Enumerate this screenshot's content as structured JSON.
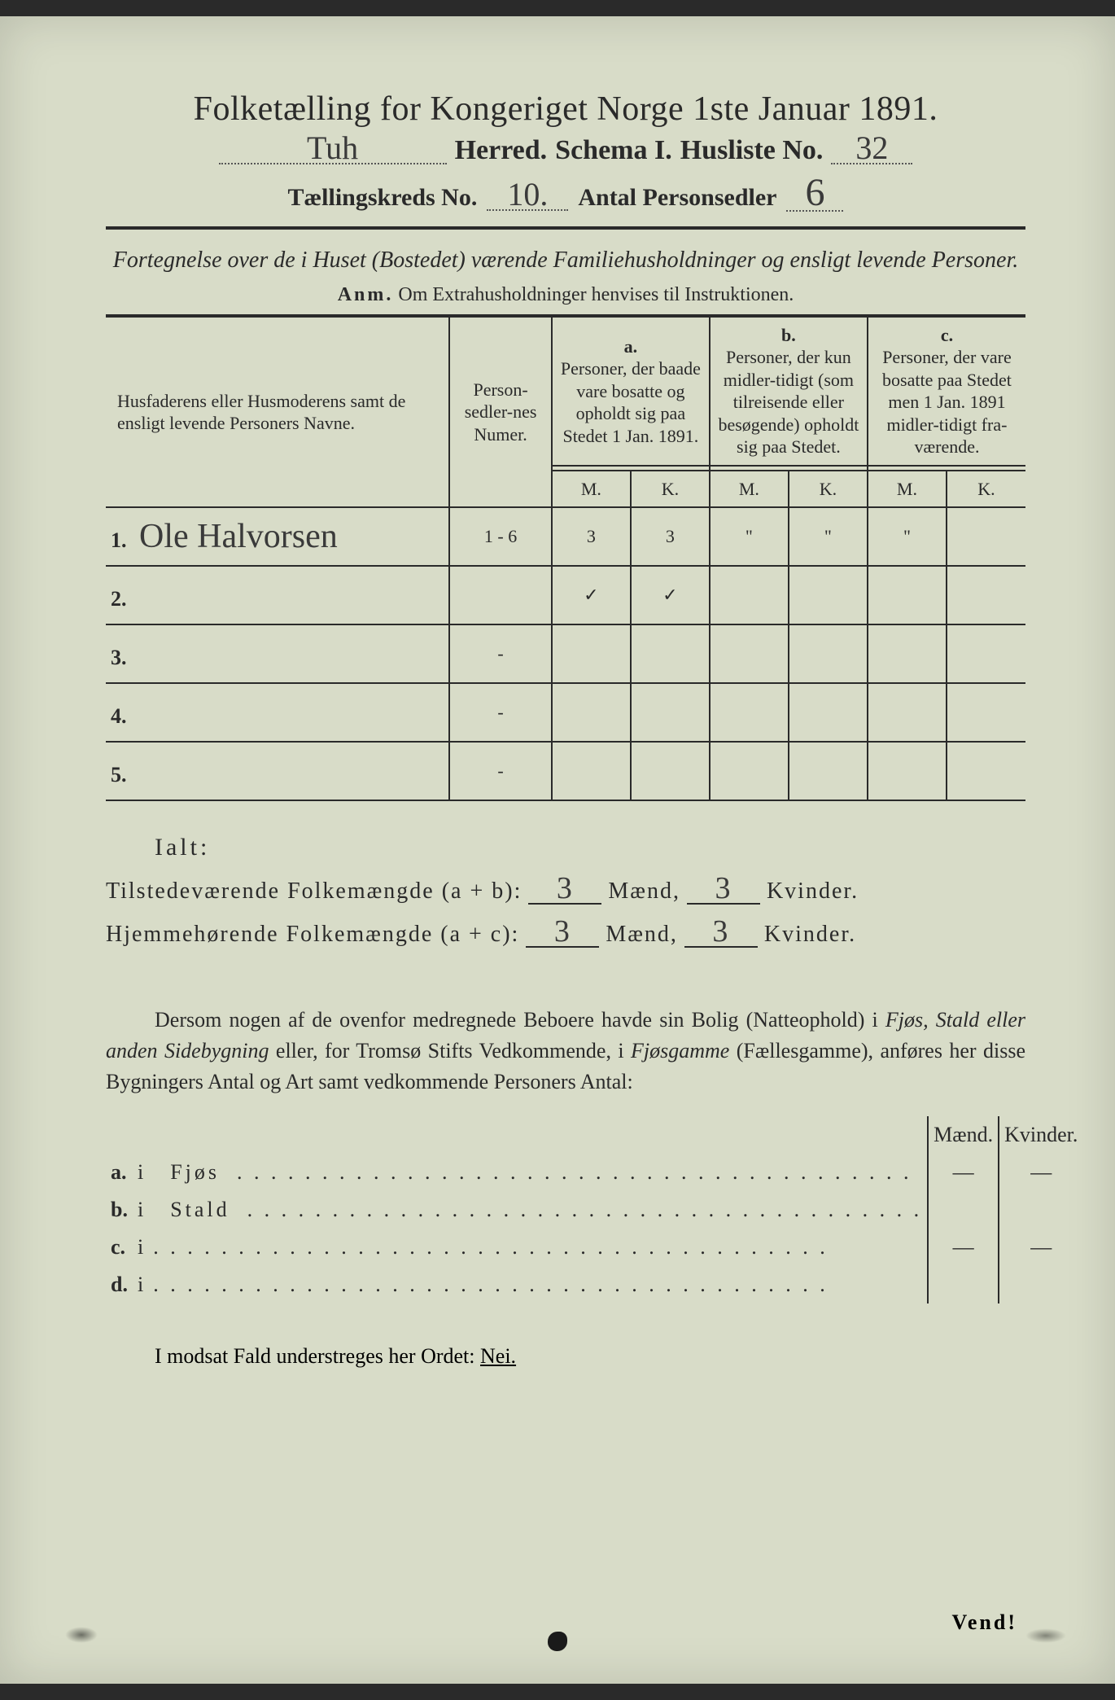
{
  "colors": {
    "paper": "#d8dcc8",
    "ink": "#2a2a2a",
    "handwriting": "#3a3a3a",
    "background": "#2a2a2a"
  },
  "typography": {
    "title_fontsize": 42,
    "body_fontsize": 26,
    "handwriting_family": "Brush Script MT"
  },
  "header": {
    "title": "Folketælling for Kongeriget Norge 1ste Januar 1891.",
    "herred_value": "Tuh",
    "herred_label": "Herred.",
    "schema_label": "Schema I.",
    "husliste_label": "Husliste No.",
    "husliste_value": "32",
    "kreds_label": "Tællingskreds No.",
    "kreds_value": "10.",
    "antal_label": "Antal Personsedler",
    "antal_value": "6"
  },
  "subtitle": {
    "line": "Fortegnelse over de i Huset (Bostedet) værende Familiehusholdninger og ensligt levende Personer.",
    "anm_label": "Anm.",
    "anm_text": "Om Extrahusholdninger henvises til Instruktionen."
  },
  "table": {
    "col_name": "Husfaderens eller Husmoderens samt de ensligt levende Personers Navne.",
    "col_num": "Person-sedler-nes Numer.",
    "col_a_label": "a.",
    "col_a": "Personer, der baade vare bosatte og opholdt sig paa Stedet 1 Jan. 1891.",
    "col_b_label": "b.",
    "col_b": "Personer, der kun midler-tidigt (som tilreisende eller besøgende) opholdt sig paa Stedet.",
    "col_c_label": "c.",
    "col_c": "Personer, der vare bosatte paa Stedet men 1 Jan. 1891 midler-tidigt fra-værende.",
    "m": "M.",
    "k": "K.",
    "rows": [
      {
        "n": "1.",
        "name": "Ole Halvorsen",
        "num": "1 - 6",
        "a_m": "3",
        "a_k": "3",
        "b_m": "\"",
        "b_k": "\"",
        "c_m": "\"",
        "c_k": ""
      },
      {
        "n": "2.",
        "name": "",
        "num": "",
        "a_m": "✓",
        "a_k": "✓",
        "b_m": "",
        "b_k": "",
        "c_m": "",
        "c_k": ""
      },
      {
        "n": "3.",
        "name": "",
        "num": "-",
        "a_m": "",
        "a_k": "",
        "b_m": "",
        "b_k": "",
        "c_m": "",
        "c_k": ""
      },
      {
        "n": "4.",
        "name": "",
        "num": "-",
        "a_m": "",
        "a_k": "",
        "b_m": "",
        "b_k": "",
        "c_m": "",
        "c_k": ""
      },
      {
        "n": "5.",
        "name": "",
        "num": "-",
        "a_m": "",
        "a_k": "",
        "b_m": "",
        "b_k": "",
        "c_m": "",
        "c_k": ""
      }
    ]
  },
  "totals": {
    "ialt": "Ialt:",
    "line1_label": "Tilstedeværende Folkemængde (a + b):",
    "line2_label": "Hjemmehørende Folkemængde (a + c):",
    "maend": "Mænd,",
    "kvinder": "Kvinder.",
    "l1_m": "3",
    "l1_k": "3",
    "l2_m": "3",
    "l2_k": "3"
  },
  "para": {
    "text1": "Dersom nogen af de ovenfor medregnede Beboere havde sin Bolig (Natteophold) i ",
    "it1": "Fjøs, Stald eller anden Sidebygning",
    "text2": " eller, for Tromsø Stifts Vedkommende, i ",
    "it2": "Fjøsgamme",
    "text3": " (Fællesgamme), anføres her disse Bygningers Antal og Art samt vedkommende Personers Antal:"
  },
  "small_table": {
    "maend": "Mænd.",
    "kvinder": "Kvinder.",
    "rows": [
      {
        "a": "a.",
        "i": "i",
        "label": "Fjøs",
        "m": "—",
        "k": "—"
      },
      {
        "a": "b.",
        "i": "i",
        "label": "Stald",
        "m": "",
        "k": ""
      },
      {
        "a": "c.",
        "i": "i",
        "label": "",
        "m": "—",
        "k": "—"
      },
      {
        "a": "d.",
        "i": "i",
        "label": "",
        "m": "",
        "k": ""
      }
    ]
  },
  "footer": {
    "modsat": "I modsat Fald understreges her Ordet: ",
    "nei": "Nei.",
    "vend": "Vend!"
  }
}
